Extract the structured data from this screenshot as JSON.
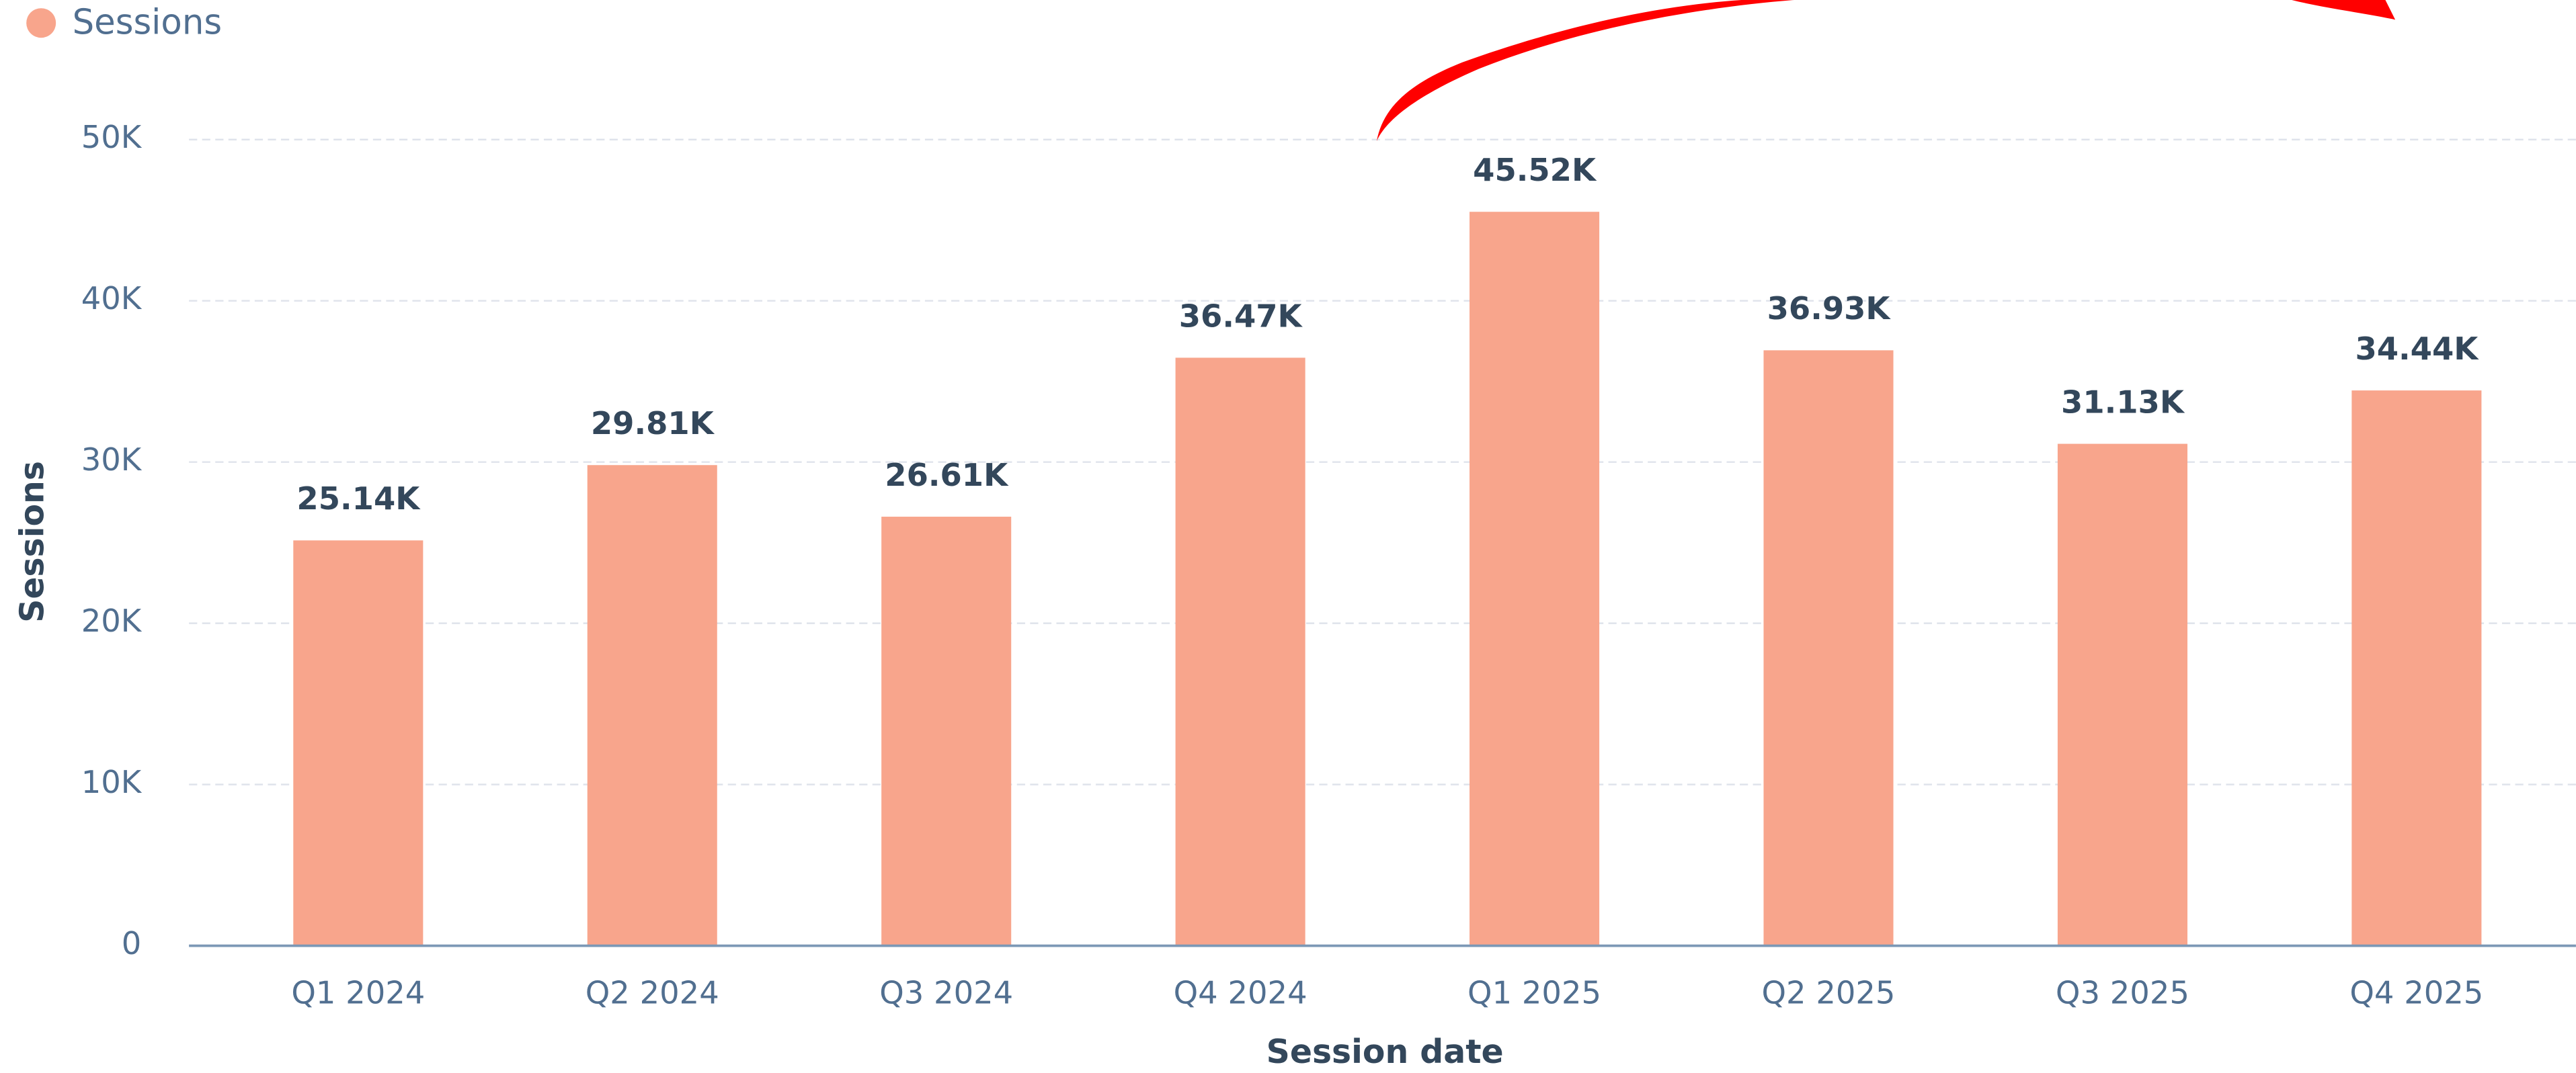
{
  "chart_data": {
    "type": "bar",
    "legend": "Sessions",
    "x_label": "Session date",
    "y_label": "Sessions",
    "categories": [
      "Q1 2024",
      "Q2 2024",
      "Q3 2024",
      "Q4 2024",
      "Q1 2025",
      "Q2 2025",
      "Q3 2025",
      "Q4 2025"
    ],
    "values": [
      25140,
      29810,
      26610,
      36470,
      45520,
      36930,
      31130,
      34440
    ],
    "value_labels": [
      "25.14K",
      "29.81K",
      "26.61K",
      "36.47K",
      "45.52K",
      "36.93K",
      "31.13K",
      "34.44K"
    ],
    "color": "#f8a58c",
    "ylim": [
      0,
      50000
    ],
    "yticks": [
      0,
      {
        "value": 10000,
        "label": "10K"
      },
      {
        "value": 20000,
        "label": "20K"
      },
      {
        "value": 30000,
        "label": "30K"
      },
      {
        "value": 40000,
        "label": "40K"
      },
      {
        "value": 50000,
        "label": "50K"
      }
    ],
    "grid": true
  }
}
